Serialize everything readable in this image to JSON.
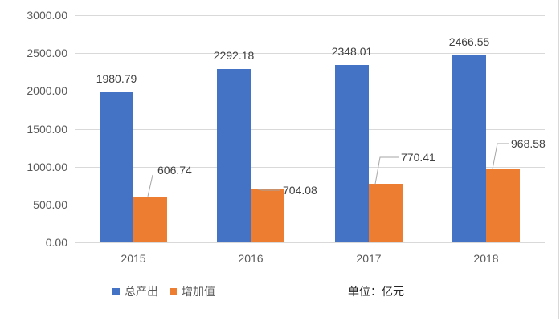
{
  "chart_data": {
    "type": "bar",
    "title": "",
    "xlabel": "",
    "ylabel": "",
    "unit_note": "单位：亿元",
    "categories": [
      "2015",
      "2016",
      "2017",
      "2018"
    ],
    "series": [
      {
        "name": "总产出",
        "color": "#4472C4",
        "values": [
          1980.79,
          2292.18,
          2348.01,
          2466.55
        ],
        "labels": [
          "1980.79",
          "2292.18",
          "2348.01",
          "2466.55"
        ]
      },
      {
        "name": "增加值",
        "color": "#ED7D31",
        "values": [
          606.74,
          704.08,
          770.41,
          968.58
        ],
        "labels": [
          "606.74",
          "704.08",
          "770.41",
          "968.58"
        ]
      }
    ],
    "ylim": [
      0,
      3000
    ],
    "yticks": [
      "0.00",
      "500.00",
      "1000.00",
      "1500.00",
      "2000.00",
      "2500.00",
      "3000.00"
    ],
    "grid": true,
    "legend_position": "bottom-left"
  }
}
